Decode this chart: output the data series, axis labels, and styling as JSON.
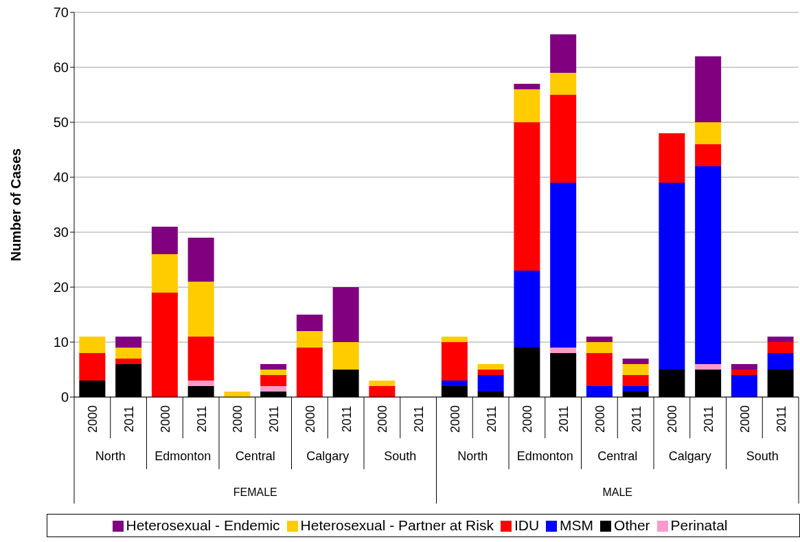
{
  "chart_data": {
    "type": "bar",
    "ylabel": "Number of Cases",
    "stacked": true,
    "categories": [
      "2000",
      "2011",
      "2000",
      "2011",
      "2000",
      "2011",
      "2000",
      "2011",
      "2000",
      "2011",
      "2000",
      "2011",
      "2000",
      "2011",
      "2000",
      "2011",
      "2000",
      "2011",
      "2000",
      "2011"
    ],
    "annotations": [
      "North",
      "Edmonton",
      "Central",
      "Calgary",
      "South",
      "North",
      "Edmonton",
      "Central",
      "Calgary",
      "South",
      "FEMALE",
      "MALE"
    ],
    "series": [
      {
        "name": "Other",
        "color": "#000000",
        "values": [
          3,
          6,
          0,
          2,
          0,
          1,
          0,
          5,
          0,
          0,
          2,
          1,
          9,
          8,
          0,
          1,
          5,
          5,
          0,
          5
        ]
      },
      {
        "name": "Perinatal",
        "color": "#ff99cc",
        "values": [
          0,
          0,
          0,
          1,
          0,
          1,
          0,
          0,
          0,
          0,
          0,
          0,
          0,
          1,
          0,
          0,
          0,
          1,
          0,
          0
        ]
      },
      {
        "name": "MSM",
        "color": "#0000ff",
        "values": [
          0,
          0,
          0,
          0,
          0,
          0,
          0,
          0,
          0,
          0,
          1,
          3,
          14,
          30,
          2,
          1,
          34,
          36,
          4,
          3
        ]
      },
      {
        "name": "IDU",
        "color": "#ff0000",
        "values": [
          5,
          1,
          19,
          8,
          0,
          2,
          9,
          0,
          2,
          0,
          7,
          1,
          27,
          16,
          6,
          2,
          9,
          4,
          1,
          2
        ]
      },
      {
        "name": "Heterosexual - Partner at Risk",
        "color": "#ffcc00",
        "values": [
          3,
          2,
          7,
          10,
          1,
          1,
          3,
          5,
          1,
          0,
          1,
          1,
          6,
          4,
          2,
          2,
          0,
          4,
          0,
          0
        ]
      },
      {
        "name": "Heterosexual - Endemic",
        "color": "#800080",
        "values": [
          0,
          2,
          5,
          8,
          0,
          1,
          3,
          10,
          0,
          0,
          0,
          0,
          1,
          7,
          1,
          1,
          0,
          12,
          1,
          1
        ]
      }
    ],
    "ylim": [
      0,
      70
    ],
    "yticks": [
      0,
      10,
      20,
      30,
      40,
      50,
      60,
      70
    ],
    "grid": "y",
    "legend": "bottom"
  }
}
